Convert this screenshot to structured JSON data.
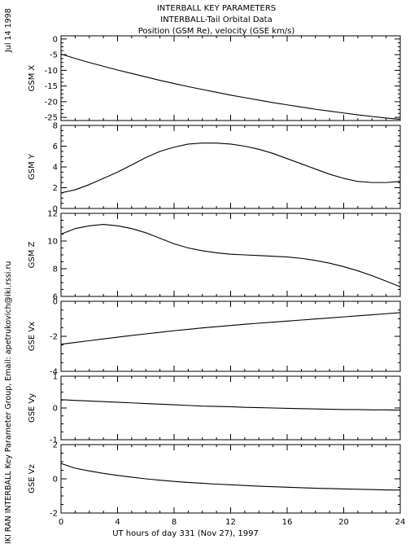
{
  "header": {
    "title_lines": [
      "INTERBALL KEY PARAMETERS",
      "INTERBALL-Tail Orbital Data",
      "Position (GSM Re), velocity (GSE km/s)"
    ],
    "date_label": "Jul 14 1998",
    "credit": "IKI RAN INTERBALL Key Parameter Group, Email: apetrukovich@iki.rssi.ru"
  },
  "chart_data": {
    "type": "line",
    "xlabel": "UT hours of day 331 (Nov 27), 1997",
    "xlim": [
      0,
      24
    ],
    "xticks": [
      0,
      4,
      8,
      12,
      16,
      20,
      24
    ],
    "x": [
      0,
      1,
      2,
      3,
      4,
      5,
      6,
      7,
      8,
      9,
      10,
      11,
      12,
      13,
      14,
      15,
      16,
      17,
      18,
      19,
      20,
      21,
      22,
      23,
      24
    ],
    "panels": [
      {
        "ylabel": "GSM X",
        "ylim": [
          -26,
          1
        ],
        "yticks": [
          0,
          -5,
          -10,
          -15,
          -20,
          -25
        ],
        "values": [
          -4.8,
          -6.2,
          -7.5,
          -8.7,
          -9.9,
          -11.0,
          -12.1,
          -13.2,
          -14.2,
          -15.2,
          -16.1,
          -17.0,
          -17.9,
          -18.7,
          -19.5,
          -20.3,
          -21.0,
          -21.7,
          -22.4,
          -23.0,
          -23.6,
          -24.2,
          -24.7,
          -25.2,
          -25.6
        ]
      },
      {
        "ylabel": "GSM Y",
        "ylim": [
          0,
          8
        ],
        "yticks": [
          0,
          2,
          4,
          6,
          8
        ],
        "values": [
          1.5,
          1.8,
          2.3,
          2.9,
          3.5,
          4.2,
          4.9,
          5.5,
          5.9,
          6.2,
          6.3,
          6.3,
          6.2,
          6.0,
          5.7,
          5.3,
          4.8,
          4.3,
          3.8,
          3.3,
          2.9,
          2.6,
          2.5,
          2.5,
          2.6
        ]
      },
      {
        "ylabel": "GSM Z",
        "ylim": [
          6,
          12
        ],
        "yticks": [
          6,
          8,
          10,
          12
        ],
        "values": [
          10.5,
          10.9,
          11.1,
          11.2,
          11.1,
          10.9,
          10.6,
          10.2,
          9.8,
          9.5,
          9.3,
          9.15,
          9.05,
          9.0,
          8.95,
          8.9,
          8.85,
          8.75,
          8.6,
          8.4,
          8.15,
          7.85,
          7.5,
          7.1,
          6.7
        ]
      },
      {
        "ylabel": "GSE Vx",
        "ylim": [
          -4,
          0
        ],
        "yticks": [
          0,
          -2,
          -4
        ],
        "values": [
          -2.45,
          -2.35,
          -2.25,
          -2.15,
          -2.05,
          -1.95,
          -1.86,
          -1.77,
          -1.68,
          -1.6,
          -1.52,
          -1.45,
          -1.38,
          -1.31,
          -1.25,
          -1.19,
          -1.13,
          -1.07,
          -1.01,
          -0.95,
          -0.89,
          -0.83,
          -0.77,
          -0.71,
          -0.65
        ]
      },
      {
        "ylabel": "GSE Vy",
        "ylim": [
          -1,
          1
        ],
        "yticks": [
          0,
          1,
          -1
        ],
        "values": [
          0.26,
          0.24,
          0.22,
          0.2,
          0.18,
          0.16,
          0.14,
          0.12,
          0.1,
          0.08,
          0.06,
          0.05,
          0.04,
          0.02,
          0.01,
          0.0,
          -0.01,
          -0.02,
          -0.03,
          -0.04,
          -0.05,
          -0.05,
          -0.06,
          -0.06,
          -0.07
        ]
      },
      {
        "ylabel": "GSE Vz",
        "ylim": [
          -2,
          2
        ],
        "yticks": [
          2,
          0,
          -2
        ],
        "values": [
          0.9,
          0.62,
          0.46,
          0.32,
          0.2,
          0.1,
          0.0,
          -0.08,
          -0.15,
          -0.21,
          -0.26,
          -0.31,
          -0.35,
          -0.39,
          -0.43,
          -0.46,
          -0.49,
          -0.52,
          -0.55,
          -0.57,
          -0.59,
          -0.61,
          -0.63,
          -0.65,
          -0.66
        ]
      }
    ]
  }
}
